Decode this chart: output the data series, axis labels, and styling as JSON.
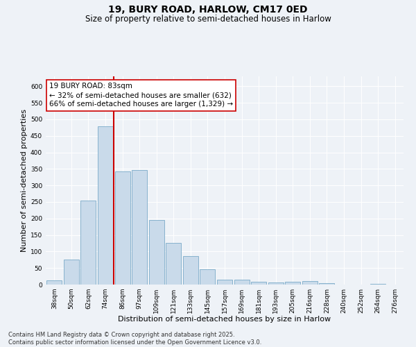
{
  "title": "19, BURY ROAD, HARLOW, CM17 0ED",
  "subtitle": "Size of property relative to semi-detached houses in Harlow",
  "xlabel": "Distribution of semi-detached houses by size in Harlow",
  "ylabel": "Number of semi-detached properties",
  "categories": [
    "38sqm",
    "50sqm",
    "62sqm",
    "74sqm",
    "86sqm",
    "97sqm",
    "109sqm",
    "121sqm",
    "133sqm",
    "145sqm",
    "157sqm",
    "169sqm",
    "181sqm",
    "193sqm",
    "205sqm",
    "216sqm",
    "228sqm",
    "240sqm",
    "252sqm",
    "264sqm",
    "276sqm"
  ],
  "values": [
    13,
    75,
    255,
    478,
    343,
    347,
    196,
    125,
    87,
    47,
    15,
    14,
    8,
    6,
    9,
    10,
    5,
    1,
    0,
    2,
    1
  ],
  "bar_color": "#c9daea",
  "bar_edge_color": "#7aaac8",
  "vline_color": "#cc0000",
  "vline_label": "19 BURY ROAD: 83sqm",
  "annotation_line1": "← 32% of semi-detached houses are smaller (632)",
  "annotation_line2": "66% of semi-detached houses are larger (1,329) →",
  "ylim": [
    0,
    630
  ],
  "yticks": [
    0,
    50,
    100,
    150,
    200,
    250,
    300,
    350,
    400,
    450,
    500,
    550,
    600
  ],
  "background_color": "#eef2f7",
  "plot_bg_color": "#eef2f7",
  "footer_line1": "Contains HM Land Registry data © Crown copyright and database right 2025.",
  "footer_line2": "Contains public sector information licensed under the Open Government Licence v3.0.",
  "title_fontsize": 10,
  "subtitle_fontsize": 8.5,
  "axis_label_fontsize": 8,
  "tick_fontsize": 6.5,
  "annotation_fontsize": 7.5,
  "footer_fontsize": 6
}
